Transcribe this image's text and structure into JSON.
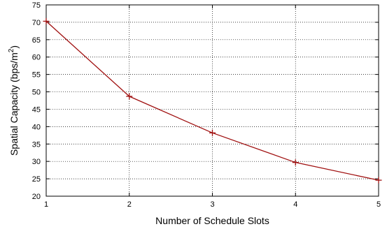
{
  "chart_data": {
    "type": "line",
    "xlabel": "Number of Schedule Slots",
    "ylabel": {
      "main": "Spatial Capacity (bps/m",
      "superscript": "2",
      "close": ")"
    },
    "x_ticks": [
      "1",
      "2",
      "3",
      "4",
      "5"
    ],
    "y_ticks": [
      "20",
      "25",
      "30",
      "35",
      "40",
      "45",
      "50",
      "55",
      "60",
      "65",
      "70",
      "75"
    ],
    "xlim": [
      1,
      5
    ],
    "ylim": [
      20,
      75
    ],
    "grid": true,
    "marker": "plus",
    "series": [
      {
        "color": "#a01010",
        "x": [
          1,
          2,
          3,
          4,
          5
        ],
        "y": [
          70.3,
          48.7,
          38.2,
          29.7,
          24.6
        ]
      }
    ]
  }
}
